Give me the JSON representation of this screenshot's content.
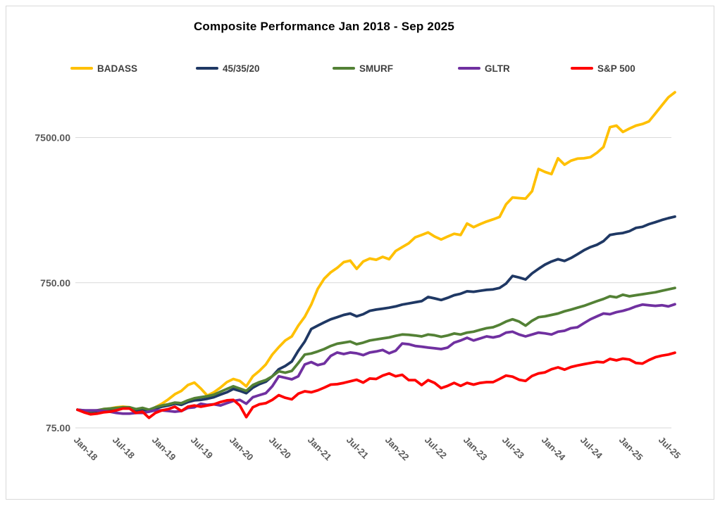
{
  "title": "Composite Performance Jan 2018 - Sep 2025",
  "colors": {
    "background": "#FFFFFF",
    "border": "#D9D9D9",
    "grid": "#D9D9D9",
    "title_text": "#000000",
    "axis_text": "#595959",
    "legend_text": "#404040"
  },
  "chart_data": {
    "type": "line",
    "title": "Composite Performance Jan 2018 - Sep 2025",
    "x_frequency": "monthly",
    "x_range": [
      "Jan-2018",
      "Sep-2025"
    ],
    "x_tick_labels": [
      "Jan-18",
      "Jul-18",
      "Jan-19",
      "Jul-19",
      "Jan-20",
      "Jul-20",
      "Jan-21",
      "Jul-21",
      "Jan-22",
      "Jul-22",
      "Jan-23",
      "Jul-23",
      "Jan-24",
      "Jul-24",
      "Jan-25",
      "Jul-25"
    ],
    "x_tick_rotation_deg": 45,
    "y_scale": "log10",
    "y_tick_values": [
      75,
      750,
      7500
    ],
    "y_tick_labels": [
      "75.00",
      "750.00",
      "7500.00"
    ],
    "ylim": [
      75,
      22000
    ],
    "grid": "horizontal-only",
    "legend_position": "top",
    "series": [
      {
        "name": "BADASS",
        "color": "#FFC000",
        "values": [
          100,
          97,
          96,
          98,
          101,
          102,
          104,
          105,
          104,
          99,
          102,
          98,
          104,
          110,
          118,
          128,
          135,
          148,
          154,
          140,
          125,
          132,
          142,
          155,
          163,
          158,
          145,
          170,
          185,
          205,
          240,
          270,
          300,
          320,
          380,
          437,
          530,
          680,
          800,
          885,
          950,
          1040,
          1065,
          935,
          1050,
          1100,
          1080,
          1130,
          1090,
          1240,
          1320,
          1400,
          1540,
          1600,
          1665,
          1560,
          1490,
          1560,
          1630,
          1600,
          1920,
          1810,
          1900,
          1980,
          2050,
          2130,
          2600,
          2900,
          2870,
          2850,
          3200,
          4560,
          4350,
          4200,
          5400,
          4880,
          5200,
          5370,
          5400,
          5500,
          5900,
          6460,
          8850,
          9070,
          8200,
          8650,
          9070,
          9300,
          9700,
          11000,
          12500,
          14200,
          15400
        ]
      },
      {
        "name": "45/35/20",
        "color": "#1F3864",
        "values": [
          100,
          98,
          97,
          98,
          100,
          101,
          102,
          103,
          103,
          99,
          101,
          97,
          102,
          105,
          107,
          110,
          108,
          113,
          116,
          117,
          119,
          122,
          127,
          132,
          139,
          135,
          130,
          142,
          150,
          156,
          170,
          190,
          200,
          215,
          255,
          295,
          360,
          380,
          400,
          420,
          434,
          450,
          460,
          440,
          455,
          480,
          490,
          497,
          505,
          515,
          530,
          540,
          550,
          560,
          598,
          585,
          570,
          590,
          615,
          630,
          655,
          650,
          660,
          670,
          675,
          690,
          740,
          835,
          815,
          790,
          870,
          935,
          1000,
          1050,
          1090,
          1060,
          1110,
          1180,
          1255,
          1320,
          1370,
          1450,
          1600,
          1630,
          1650,
          1700,
          1790,
          1820,
          1900,
          1960,
          2030,
          2090,
          2140
        ]
      },
      {
        "name": "SMURF",
        "color": "#538135",
        "values": [
          100,
          99,
          98,
          99,
          101,
          102,
          103,
          104,
          104,
          101,
          103,
          100,
          104,
          107,
          109,
          112,
          111,
          116,
          120,
          122,
          124,
          127,
          133,
          139,
          145,
          140,
          135,
          148,
          155,
          160,
          170,
          184,
          180,
          185,
          210,
          240,
          244,
          252,
          262,
          275,
          285,
          290,
          295,
          283,
          290,
          300,
          305,
          310,
          315,
          323,
          330,
          328,
          325,
          320,
          330,
          326,
          318,
          325,
          335,
          330,
          340,
          345,
          355,
          365,
          370,
          385,
          405,
          420,
          405,
          380,
          410,
          434,
          440,
          450,
          460,
          477,
          490,
          505,
          520,
          540,
          560,
          580,
          605,
          595,
          620,
          605,
          615,
          625,
          635,
          645,
          660,
          675,
          690
        ]
      },
      {
        "name": "GLTR",
        "color": "#7030A0",
        "values": [
          100,
          99,
          99,
          99,
          98,
          97,
          95,
          94,
          94,
          95,
          95,
          97,
          99,
          99,
          98,
          97,
          98,
          103,
          104,
          110,
          108,
          109,
          107,
          111,
          115,
          117,
          110,
          122,
          126,
          130,
          145,
          170,
          166,
          162,
          170,
          205,
          213,
          203,
          208,
          235,
          248,
          242,
          248,
          245,
          238,
          248,
          252,
          258,
          245,
          255,
          286,
          283,
          275,
          272,
          268,
          265,
          262,
          268,
          290,
          300,
          313,
          300,
          310,
          320,
          315,
          322,
          340,
          345,
          330,
          320,
          330,
          340,
          336,
          330,
          345,
          350,
          365,
          370,
          395,
          420,
          440,
          460,
          455,
          470,
          480,
          495,
          515,
          530,
          525,
          520,
          525,
          515,
          533
        ]
      },
      {
        "name": "S&P 500",
        "color": "#FF0000",
        "values": [
          100,
          96,
          93,
          94,
          96,
          97,
          99,
          102,
          102,
          95,
          97,
          88,
          95,
          99,
          101,
          105,
          98,
          105,
          107,
          105,
          107,
          109,
          113,
          116,
          117,
          107,
          89,
          104,
          109,
          111,
          117,
          126,
          121,
          118,
          129,
          134,
          132,
          136,
          142,
          149,
          150,
          153,
          157,
          161,
          154,
          164,
          163,
          172,
          178,
          170,
          174,
          160,
          160,
          148,
          160,
          153,
          141,
          146,
          153,
          146,
          153,
          149,
          153,
          155,
          155,
          163,
          172,
          169,
          161,
          158,
          171,
          178,
          181,
          190,
          196,
          189,
          197,
          202,
          206,
          210,
          214,
          212,
          224,
          219,
          225,
          222,
          210,
          208,
          220,
          230,
          236,
          240,
          247
        ]
      }
    ]
  }
}
